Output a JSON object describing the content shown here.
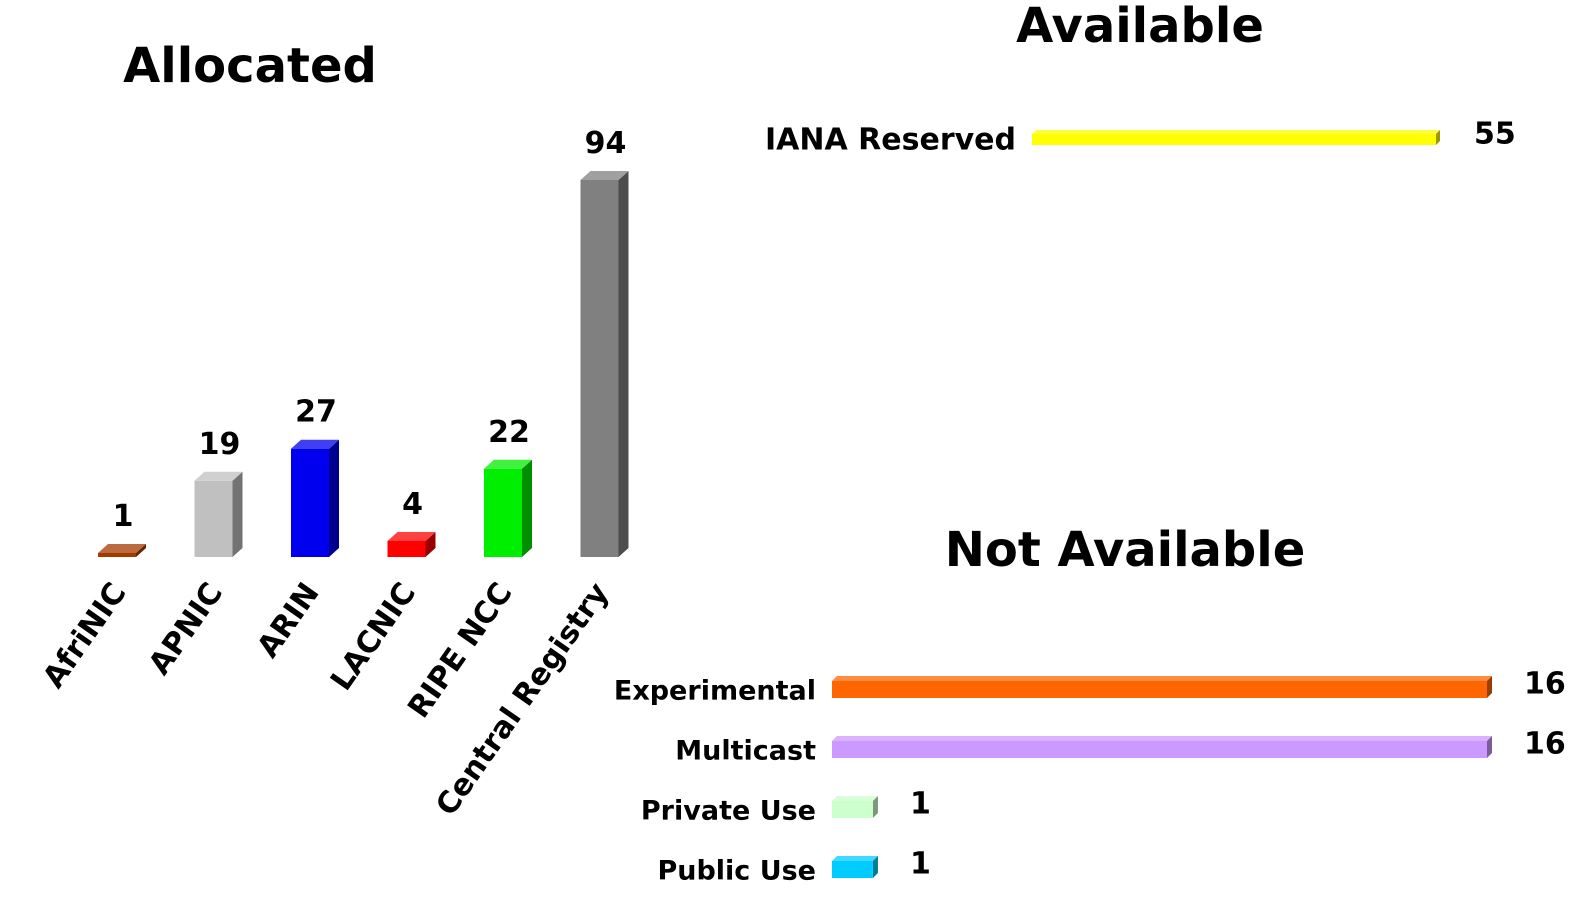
{
  "chart_data": [
    {
      "type": "bar",
      "title": "Allocated",
      "categories": [
        "AfriNIC",
        "APNIC",
        "ARIN",
        "LACNIC",
        "RIPE NCC",
        "Central Registry"
      ],
      "values": [
        1,
        19,
        27,
        4,
        22,
        94
      ],
      "colors": [
        "#a33a00",
        "#c0c0c0",
        "#0000ee",
        "#ff0000",
        "#00ee00",
        "#808080"
      ],
      "orientation": "vertical",
      "grid": false
    },
    {
      "type": "bar",
      "title": "Available",
      "categories": [
        "IANA Reserved"
      ],
      "values": [
        55
      ],
      "colors": [
        "#ffff00"
      ],
      "orientation": "horizontal",
      "grid": false
    },
    {
      "type": "bar",
      "title": "Not Available",
      "categories": [
        "Experimental",
        "Multicast",
        "Private Use",
        "Public Use"
      ],
      "values": [
        16,
        16,
        1,
        1
      ],
      "colors": [
        "#ff6600",
        "#cc99ff",
        "#ccffcc",
        "#00ccff"
      ],
      "orientation": "horizontal",
      "grid": false
    }
  ]
}
